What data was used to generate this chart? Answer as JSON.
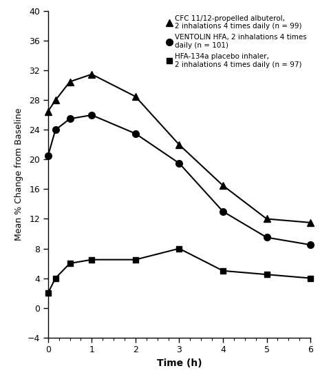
{
  "xlabel": "Time (h)",
  "ylabel": "Mean % Change from Baseline",
  "xlim": [
    0,
    6
  ],
  "ylim": [
    -4,
    40
  ],
  "yticks": [
    -4,
    0,
    4,
    8,
    12,
    16,
    20,
    24,
    28,
    32,
    36,
    40
  ],
  "xticks": [
    0,
    1,
    2,
    3,
    4,
    5,
    6
  ],
  "series": [
    {
      "label": "CFC 11/12-propelled albuterol,\n2 inhalations 4 times daily (n = 99)",
      "x": [
        0.0,
        0.17,
        0.5,
        1.0,
        2.0,
        3.0,
        4.0,
        5.0,
        6.0
      ],
      "y": [
        26.5,
        28.0,
        30.5,
        31.5,
        28.5,
        22.0,
        16.5,
        12.0,
        11.5
      ],
      "marker": "^",
      "color": "#000000",
      "markersize": 7
    },
    {
      "label": "VENTOLIN HFA, 2 inhalations 4 times\ndaily (n = 101)",
      "x": [
        0.0,
        0.17,
        0.5,
        1.0,
        2.0,
        3.0,
        4.0,
        5.0,
        6.0
      ],
      "y": [
        20.5,
        24.0,
        25.5,
        26.0,
        23.5,
        19.5,
        13.0,
        9.5,
        8.5
      ],
      "marker": "o",
      "color": "#000000",
      "markersize": 7
    },
    {
      "label": "HFA-134a placebo inhaler,\n2 inhalations 4 times daily (n = 97)",
      "x": [
        0.0,
        0.17,
        0.5,
        1.0,
        2.0,
        3.0,
        4.0,
        5.0,
        6.0
      ],
      "y": [
        2.0,
        4.0,
        6.0,
        6.5,
        6.5,
        8.0,
        5.0,
        4.5,
        4.0
      ],
      "marker": "s",
      "color": "#000000",
      "markersize": 6
    }
  ],
  "background_color": "#ffffff",
  "linewidth": 1.5
}
